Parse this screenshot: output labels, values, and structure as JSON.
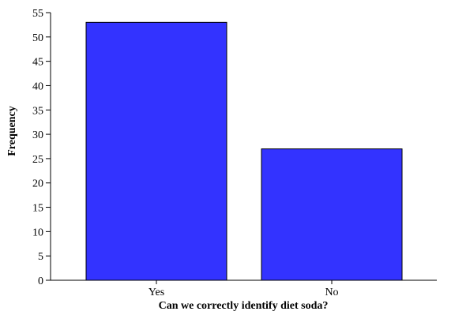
{
  "chart_data": {
    "type": "bar",
    "categories": [
      "Yes",
      "No"
    ],
    "values": [
      53,
      27
    ],
    "xlabel": "Can we correctly identify diet soda?",
    "ylabel": "Frequency",
    "ylim": [
      0,
      55
    ],
    "yticks": [
      0,
      5,
      10,
      15,
      20,
      25,
      30,
      35,
      40,
      45,
      50,
      55
    ],
    "grid": false,
    "bar_color": "#3333ff",
    "bar_edge_color": "#000000"
  }
}
